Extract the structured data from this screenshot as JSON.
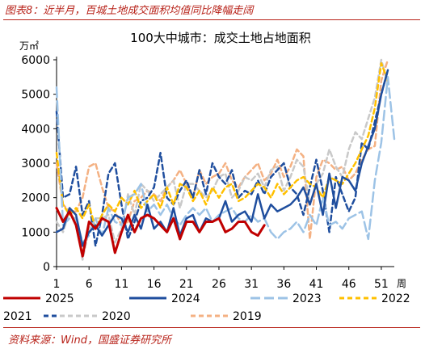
{
  "figure_caption": "图表8：近半月，百城土地成交面积均值同比降幅走阔",
  "source_note": "资料来源：Wind，国盛证券研究所",
  "chart_data": {
    "type": "line",
    "title": "100大中城市：成交土地占地面积",
    "ylabel": "万㎡",
    "xlabel": "周",
    "ylim": [
      0,
      6000
    ],
    "yticks": [
      0,
      1000,
      2000,
      3000,
      4000,
      5000,
      6000
    ],
    "xlim": [
      1,
      53
    ],
    "xticks": [
      1,
      6,
      11,
      16,
      21,
      26,
      31,
      36,
      41,
      46,
      51
    ],
    "grid": false,
    "legend_position": "bottom",
    "series": [
      {
        "name": "2025",
        "color": "#c00000",
        "dash": "solid",
        "width": 3,
        "values": [
          1700,
          1300,
          1600,
          1200,
          300,
          1300,
          1100,
          1400,
          1300,
          400,
          1000,
          1500,
          1000,
          1400,
          1500,
          1400,
          1200,
          1000,
          1400,
          800,
          1300,
          1300,
          1000,
          1300,
          1300,
          1400,
          1000,
          1100,
          1300,
          1300,
          1000,
          900,
          1200
        ]
      },
      {
        "name": "2024",
        "color": "#1f4e9e",
        "dash": "solid",
        "width": 2.5,
        "values": [
          1000,
          1100,
          1700,
          1500,
          600,
          1000,
          1200,
          900,
          1200,
          1500,
          1400,
          1000,
          1500,
          1100,
          1800,
          1100,
          1300,
          1000,
          1700,
          900,
          1400,
          1500,
          1000,
          1400,
          1300,
          1400,
          1900,
          1300,
          1500,
          1600,
          1300,
          2100,
          1400,
          1800,
          1600,
          1700,
          1800,
          2000,
          2300,
          1800,
          2400,
          1500,
          2700,
          1700,
          2600,
          2500,
          2200,
          3000,
          3500,
          4000,
          5000,
          5700
        ]
      },
      {
        "name": "2023",
        "color": "#9dc3e6",
        "dash": "longdash",
        "width": 2.5,
        "values": [
          5200,
          1200,
          1400,
          1400,
          700,
          900,
          1400,
          900,
          1700,
          1300,
          1200,
          2000,
          2100,
          2400,
          1600,
          1800,
          1500,
          1800,
          1400,
          1200,
          1500,
          1700,
          1500,
          1700,
          1300,
          1500,
          1600,
          1700,
          1400,
          1300,
          1500,
          1300,
          1400,
          1000,
          800,
          1000,
          1100,
          1300,
          1000,
          1500,
          1200,
          2000,
          1200,
          1300,
          1100,
          1400,
          1500,
          1600,
          800,
          2500,
          3600,
          5500,
          3700
        ]
      },
      {
        "name": "2022",
        "color": "#ffc000",
        "dash": "dash",
        "width": 2.5,
        "values": [
          3300,
          1800,
          1500,
          1700,
          1400,
          1800,
          1100,
          1500,
          1800,
          1600,
          2000,
          1800,
          2200,
          1700,
          1900,
          2100,
          1700,
          2300,
          1800,
          2400,
          2300,
          1900,
          2200,
          1800,
          2300,
          2000,
          2300,
          2400,
          1900,
          2000,
          2200,
          2400,
          2300,
          2000,
          2400,
          2100,
          2300,
          2500,
          2600,
          2400,
          2300,
          2000,
          2600,
          2500,
          2400,
          2700,
          3000,
          3400,
          3800,
          4600,
          5900,
          5400
        ]
      },
      {
        "name": "2021",
        "color": "#1f4e9e",
        "dash": "dash",
        "width": 2.5,
        "values": [
          4500,
          2000,
          2100,
          2900,
          1500,
          1900,
          600,
          1500,
          2700,
          3000,
          1800,
          800,
          1300,
          1900,
          2000,
          2300,
          3300,
          2000,
          1800,
          2200,
          2500,
          2000,
          2800,
          2100,
          3000,
          2600,
          2400,
          2800,
          2000,
          2200,
          2100,
          2500,
          2100,
          2600,
          2800,
          3000,
          2300,
          2100,
          1500,
          2300,
          3100,
          2200,
          1000,
          2600,
          2100,
          1600,
          2000,
          3600,
          3400,
          4200,
          5000,
          5700
        ]
      },
      {
        "name": "2020",
        "color": "#c9c9c9",
        "dash": "dash",
        "width": 2.5,
        "values": [
          1300,
          1000,
          1600,
          1300,
          200,
          1100,
          1400,
          1400,
          1500,
          700,
          1100,
          2100,
          1500,
          2400,
          2200,
          1900,
          2100,
          2300,
          2500,
          1700,
          2400,
          2400,
          2200,
          2000,
          2200,
          2600,
          2700,
          2000,
          2200,
          2600,
          2500,
          2700,
          2300,
          2800,
          2900,
          2200,
          2600,
          3100,
          2900,
          1800,
          2400,
          2700,
          3400,
          2900,
          2600,
          3400,
          3900,
          3700,
          4300,
          4900,
          6000,
          5300
        ]
      },
      {
        "name": "2019",
        "color": "#f4b183",
        "dash": "dash",
        "width": 2.5,
        "values": [
          3000,
          1800,
          1600,
          1600,
          2000,
          2900,
          3000,
          2300,
          1700,
          1600,
          1200,
          1300,
          1900,
          2000,
          2200,
          2100,
          1900,
          2300,
          2500,
          2800,
          2400,
          2000,
          2800,
          2400,
          2600,
          2700,
          3000,
          2500,
          2300,
          2600,
          2800,
          3000,
          2500,
          2700,
          3100,
          2600,
          2900,
          3400,
          3200,
          800,
          2600,
          3100,
          3000,
          2800,
          2900,
          2500,
          2700,
          3100,
          3400,
          3500,
          5400,
          6000
        ]
      }
    ]
  }
}
